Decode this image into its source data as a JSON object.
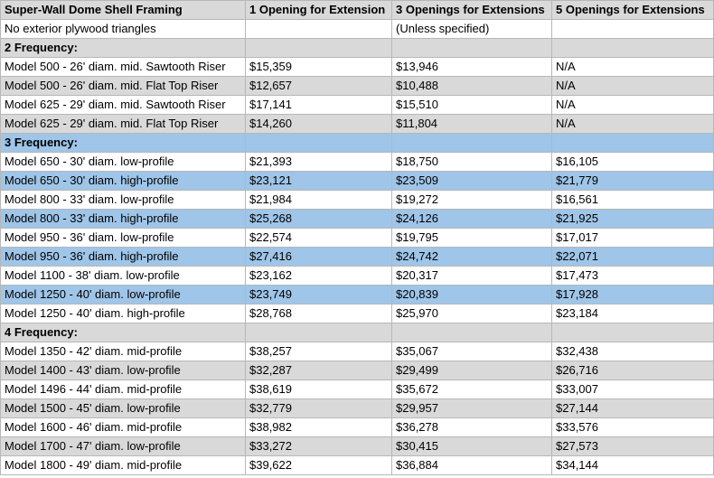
{
  "headers": [
    "Super-Wall Dome Shell Framing",
    "1 Opening for Extension",
    "3 Openings for Extensions",
    "5 Openings for Extensions"
  ],
  "rows": [
    {
      "style": "white",
      "cells": [
        "No exterior plywood triangles",
        "",
        "(Unless specified)",
        ""
      ]
    },
    {
      "style": "gray section",
      "cells": [
        "2 Frequency:",
        "",
        "",
        ""
      ]
    },
    {
      "style": "white",
      "cells": [
        "Model 500 - 26' diam. mid. Sawtooth Riser",
        "$15,359",
        "$13,946",
        "N/A"
      ]
    },
    {
      "style": "gray",
      "cells": [
        "Model 500 - 26' diam. mid. Flat Top Riser",
        "$12,657",
        "$10,488",
        "N/A"
      ]
    },
    {
      "style": "white",
      "cells": [
        "Model 625 - 29' diam. mid. Sawtooth Riser",
        "$17,141",
        "$15,510",
        "N/A"
      ]
    },
    {
      "style": "gray",
      "cells": [
        "Model 625 - 29' diam. mid. Flat Top Riser",
        "$14,260",
        "$11,804",
        "N/A"
      ]
    },
    {
      "style": "blue section",
      "cells": [
        "3 Frequency:",
        "",
        "",
        ""
      ]
    },
    {
      "style": "white",
      "cells": [
        "Model 650 - 30' diam. low-profile",
        "$21,393",
        "$18,750",
        "$16,105"
      ]
    },
    {
      "style": "blue",
      "cells": [
        "Model 650 - 30' diam. high-profile",
        "$23,121",
        "$23,509",
        "$21,779"
      ]
    },
    {
      "style": "white",
      "cells": [
        "Model 800 - 33' diam. low-profile",
        "$21,984",
        "$19,272",
        "$16,561"
      ]
    },
    {
      "style": "blue",
      "cells": [
        "Model 800 - 33' diam. high-profile",
        "$25,268",
        "$24,126",
        "$21,925"
      ]
    },
    {
      "style": "white",
      "cells": [
        "Model 950 - 36' diam. low-profile",
        "$22,574",
        "$19,795",
        "$17,017"
      ]
    },
    {
      "style": "blue",
      "cells": [
        "Model 950 - 36' diam. high-profile",
        "$27,416",
        "$24,742",
        "$22,071"
      ]
    },
    {
      "style": "white",
      "cells": [
        "Model 1100 - 38' diam. low-profile",
        "$23,162",
        "$20,317",
        "$17,473"
      ]
    },
    {
      "style": "blue",
      "cells": [
        "Model 1250 - 40' diam. low-profile",
        "$23,749",
        "$20,839",
        "$17,928"
      ]
    },
    {
      "style": "white",
      "cells": [
        "Model 1250 - 40' diam. high-profile",
        "$28,768",
        "$25,970",
        "$23,184"
      ]
    },
    {
      "style": "gray section",
      "cells": [
        "4 Frequency:",
        "",
        "",
        ""
      ]
    },
    {
      "style": "white",
      "cells": [
        "Model 1350 - 42' diam. mid-profile",
        "$38,257",
        "$35,067",
        "$32,438"
      ]
    },
    {
      "style": "gray",
      "cells": [
        "Model 1400 - 43' diam. low-profile",
        "$32,287",
        "$29,499",
        "$26,716"
      ]
    },
    {
      "style": "white",
      "cells": [
        "Model 1496 - 44' diam. mid-profile",
        "$38,619",
        "$35,672",
        "$33,007"
      ]
    },
    {
      "style": "gray",
      "cells": [
        "Model 1500 - 45' diam. low-profile",
        "$32,779",
        "$29,957",
        "$27,144"
      ]
    },
    {
      "style": "white",
      "cells": [
        "Model 1600 - 46' diam. mid-profile",
        "$38,982",
        "$36,278",
        "$33,576"
      ]
    },
    {
      "style": "gray",
      "cells": [
        "Model 1700 - 47' diam. low-profile",
        "$33,272",
        "$30,415",
        "$27,573"
      ]
    },
    {
      "style": "white",
      "cells": [
        "Model 1800 - 49' diam. mid-profile",
        "$39,622",
        "$36,884",
        "$34,144"
      ]
    }
  ]
}
